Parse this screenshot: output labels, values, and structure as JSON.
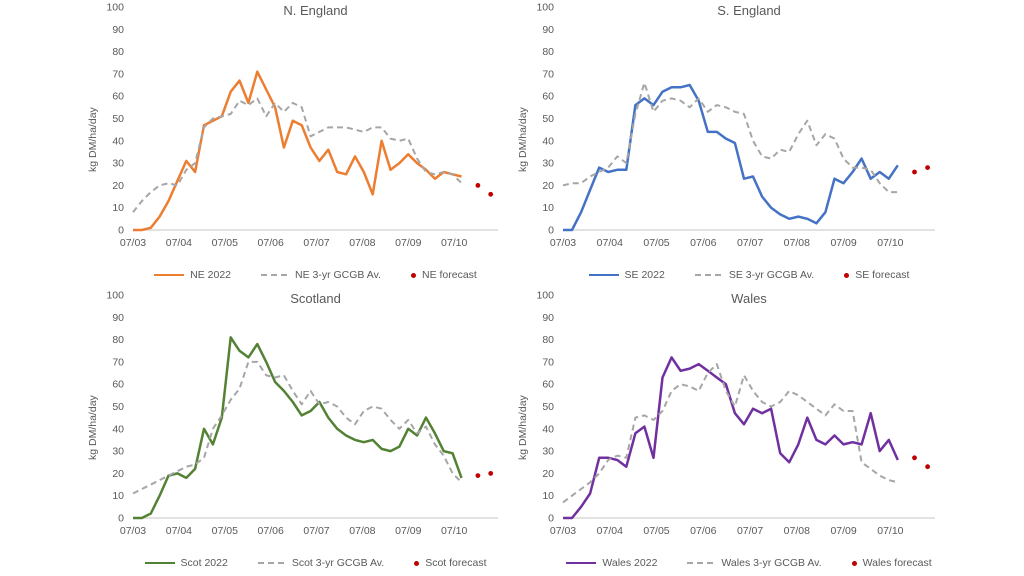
{
  "figure": {
    "background": "#ffffff",
    "text_color": "#595959",
    "baseline_color": "#d9d9d9"
  },
  "chart_data": [
    {
      "type": "line",
      "title": "N. England",
      "ylabel": "kg DM/ha/day",
      "ylim": [
        0,
        100
      ],
      "ytick_step": 10,
      "grid": "off",
      "legend_position": "bottom",
      "categories": [
        "07/03",
        "07/04",
        "07/05",
        "07/06",
        "07/07",
        "07/08",
        "07/09",
        "07/10"
      ],
      "series": [
        {
          "name": "NE 2022",
          "style": "solid",
          "color": "#ED7D31",
          "values": [
            0,
            0,
            1,
            6,
            13,
            22,
            31,
            26,
            47,
            49,
            51,
            62,
            67,
            57,
            71,
            63,
            55,
            37,
            49,
            47,
            37,
            31,
            36,
            26,
            25,
            33,
            26,
            16,
            40,
            27,
            30,
            34,
            30,
            27,
            23,
            26,
            25,
            24
          ]
        },
        {
          "name": "NE 3-yr GCGB Av.",
          "style": "dashed",
          "color": "#A6A6A6",
          "values": [
            8,
            13,
            17,
            20,
            21,
            20,
            27,
            30,
            46,
            50,
            51,
            52,
            58,
            56,
            59,
            51,
            57,
            53,
            57,
            55,
            42,
            44,
            46,
            46,
            46,
            45,
            44,
            46,
            46,
            41,
            40,
            41,
            32,
            26,
            25,
            26,
            25,
            21
          ]
        },
        {
          "name": "NE forecast",
          "style": "dots",
          "color": "#C00000",
          "values": [
            20,
            16
          ]
        }
      ]
    },
    {
      "type": "line",
      "title": "S. England",
      "ylabel": "kg DM/ha/day",
      "ylim": [
        0,
        100
      ],
      "ytick_step": 10,
      "grid": "off",
      "legend_position": "bottom",
      "categories": [
        "07/03",
        "07/04",
        "07/05",
        "07/06",
        "07/07",
        "07/08",
        "07/09",
        "07/10"
      ],
      "series": [
        {
          "name": "SE 2022",
          "style": "solid",
          "color": "#4472C4",
          "values": [
            0,
            0,
            8,
            18,
            28,
            26,
            27,
            27,
            56,
            59,
            56,
            62,
            64,
            64,
            65,
            58,
            44,
            44,
            41,
            39,
            23,
            24,
            15,
            10,
            7,
            5,
            6,
            5,
            3,
            8,
            23,
            21,
            26,
            32,
            23,
            26,
            23,
            29
          ]
        },
        {
          "name": "SE 3-yr GCGB Av.",
          "style": "dashed",
          "color": "#A6A6A6",
          "values": [
            20,
            21,
            21,
            24,
            26,
            28,
            33,
            30,
            52,
            66,
            53,
            58,
            59,
            58,
            55,
            59,
            53,
            56,
            55,
            53,
            52,
            40,
            33,
            32,
            36,
            35,
            43,
            49,
            38,
            43,
            41,
            32,
            28,
            28,
            27,
            21,
            17,
            17
          ]
        },
        {
          "name": "SE forecast",
          "style": "dots",
          "color": "#C00000",
          "values": [
            26,
            28
          ]
        }
      ]
    },
    {
      "type": "line",
      "title": "Scotland",
      "ylabel": "kg DM/ha/day",
      "ylim": [
        0,
        100
      ],
      "ytick_step": 10,
      "grid": "off",
      "legend_position": "bottom",
      "categories": [
        "07/03",
        "07/04",
        "07/05",
        "07/06",
        "07/07",
        "07/08",
        "07/09",
        "07/10"
      ],
      "series": [
        {
          "name": "Scot 2022",
          "style": "solid",
          "color": "#548235",
          "values": [
            0,
            0,
            2,
            10,
            19,
            20,
            18,
            22,
            40,
            33,
            45,
            81,
            75,
            72,
            78,
            70,
            61,
            57,
            52,
            46,
            48,
            52,
            45,
            40,
            37,
            35,
            34,
            35,
            31,
            30,
            32,
            40,
            37,
            45,
            38,
            30,
            29,
            18
          ]
        },
        {
          "name": "Scot 3-yr GCGB Av.",
          "style": "dashed",
          "color": "#A6A6A6",
          "values": [
            11,
            13,
            15,
            17,
            19,
            21,
            23,
            24,
            27,
            40,
            46,
            53,
            58,
            70,
            70,
            64,
            63,
            64,
            57,
            51,
            57,
            51,
            52,
            50,
            45,
            42,
            48,
            50,
            49,
            44,
            40,
            44,
            38,
            41,
            33,
            28,
            20,
            16
          ]
        },
        {
          "name": "Scot forecast",
          "style": "dots",
          "color": "#C00000",
          "values": [
            19,
            20
          ]
        }
      ]
    },
    {
      "type": "line",
      "title": "Wales",
      "ylabel": "kg DM/ha/day",
      "ylim": [
        0,
        100
      ],
      "ytick_step": 10,
      "grid": "off",
      "legend_position": "bottom",
      "categories": [
        "07/03",
        "07/04",
        "07/05",
        "07/06",
        "07/07",
        "07/08",
        "07/09",
        "07/10"
      ],
      "series": [
        {
          "name": "Wales 2022",
          "style": "solid",
          "color": "#7030A0",
          "values": [
            0,
            0,
            5,
            11,
            27,
            27,
            26,
            23,
            38,
            41,
            27,
            63,
            72,
            66,
            67,
            69,
            66,
            63,
            60,
            47,
            42,
            49,
            47,
            49,
            29,
            25,
            33,
            45,
            35,
            33,
            37,
            33,
            34,
            33,
            47,
            30,
            35,
            26
          ]
        },
        {
          "name": "Wales 3-yr GCGB Av.",
          "style": "dashed",
          "color": "#A6A6A6",
          "values": [
            7,
            10,
            13,
            16,
            20,
            26,
            28,
            27,
            45,
            46,
            44,
            48,
            57,
            60,
            59,
            57,
            65,
            69,
            57,
            50,
            64,
            57,
            52,
            50,
            52,
            57,
            55,
            52,
            49,
            46,
            51,
            48,
            48,
            25,
            22,
            19,
            17,
            16
          ]
        },
        {
          "name": "Wales forecast",
          "style": "dots",
          "color": "#C00000",
          "values": [
            27,
            23
          ]
        }
      ]
    }
  ]
}
